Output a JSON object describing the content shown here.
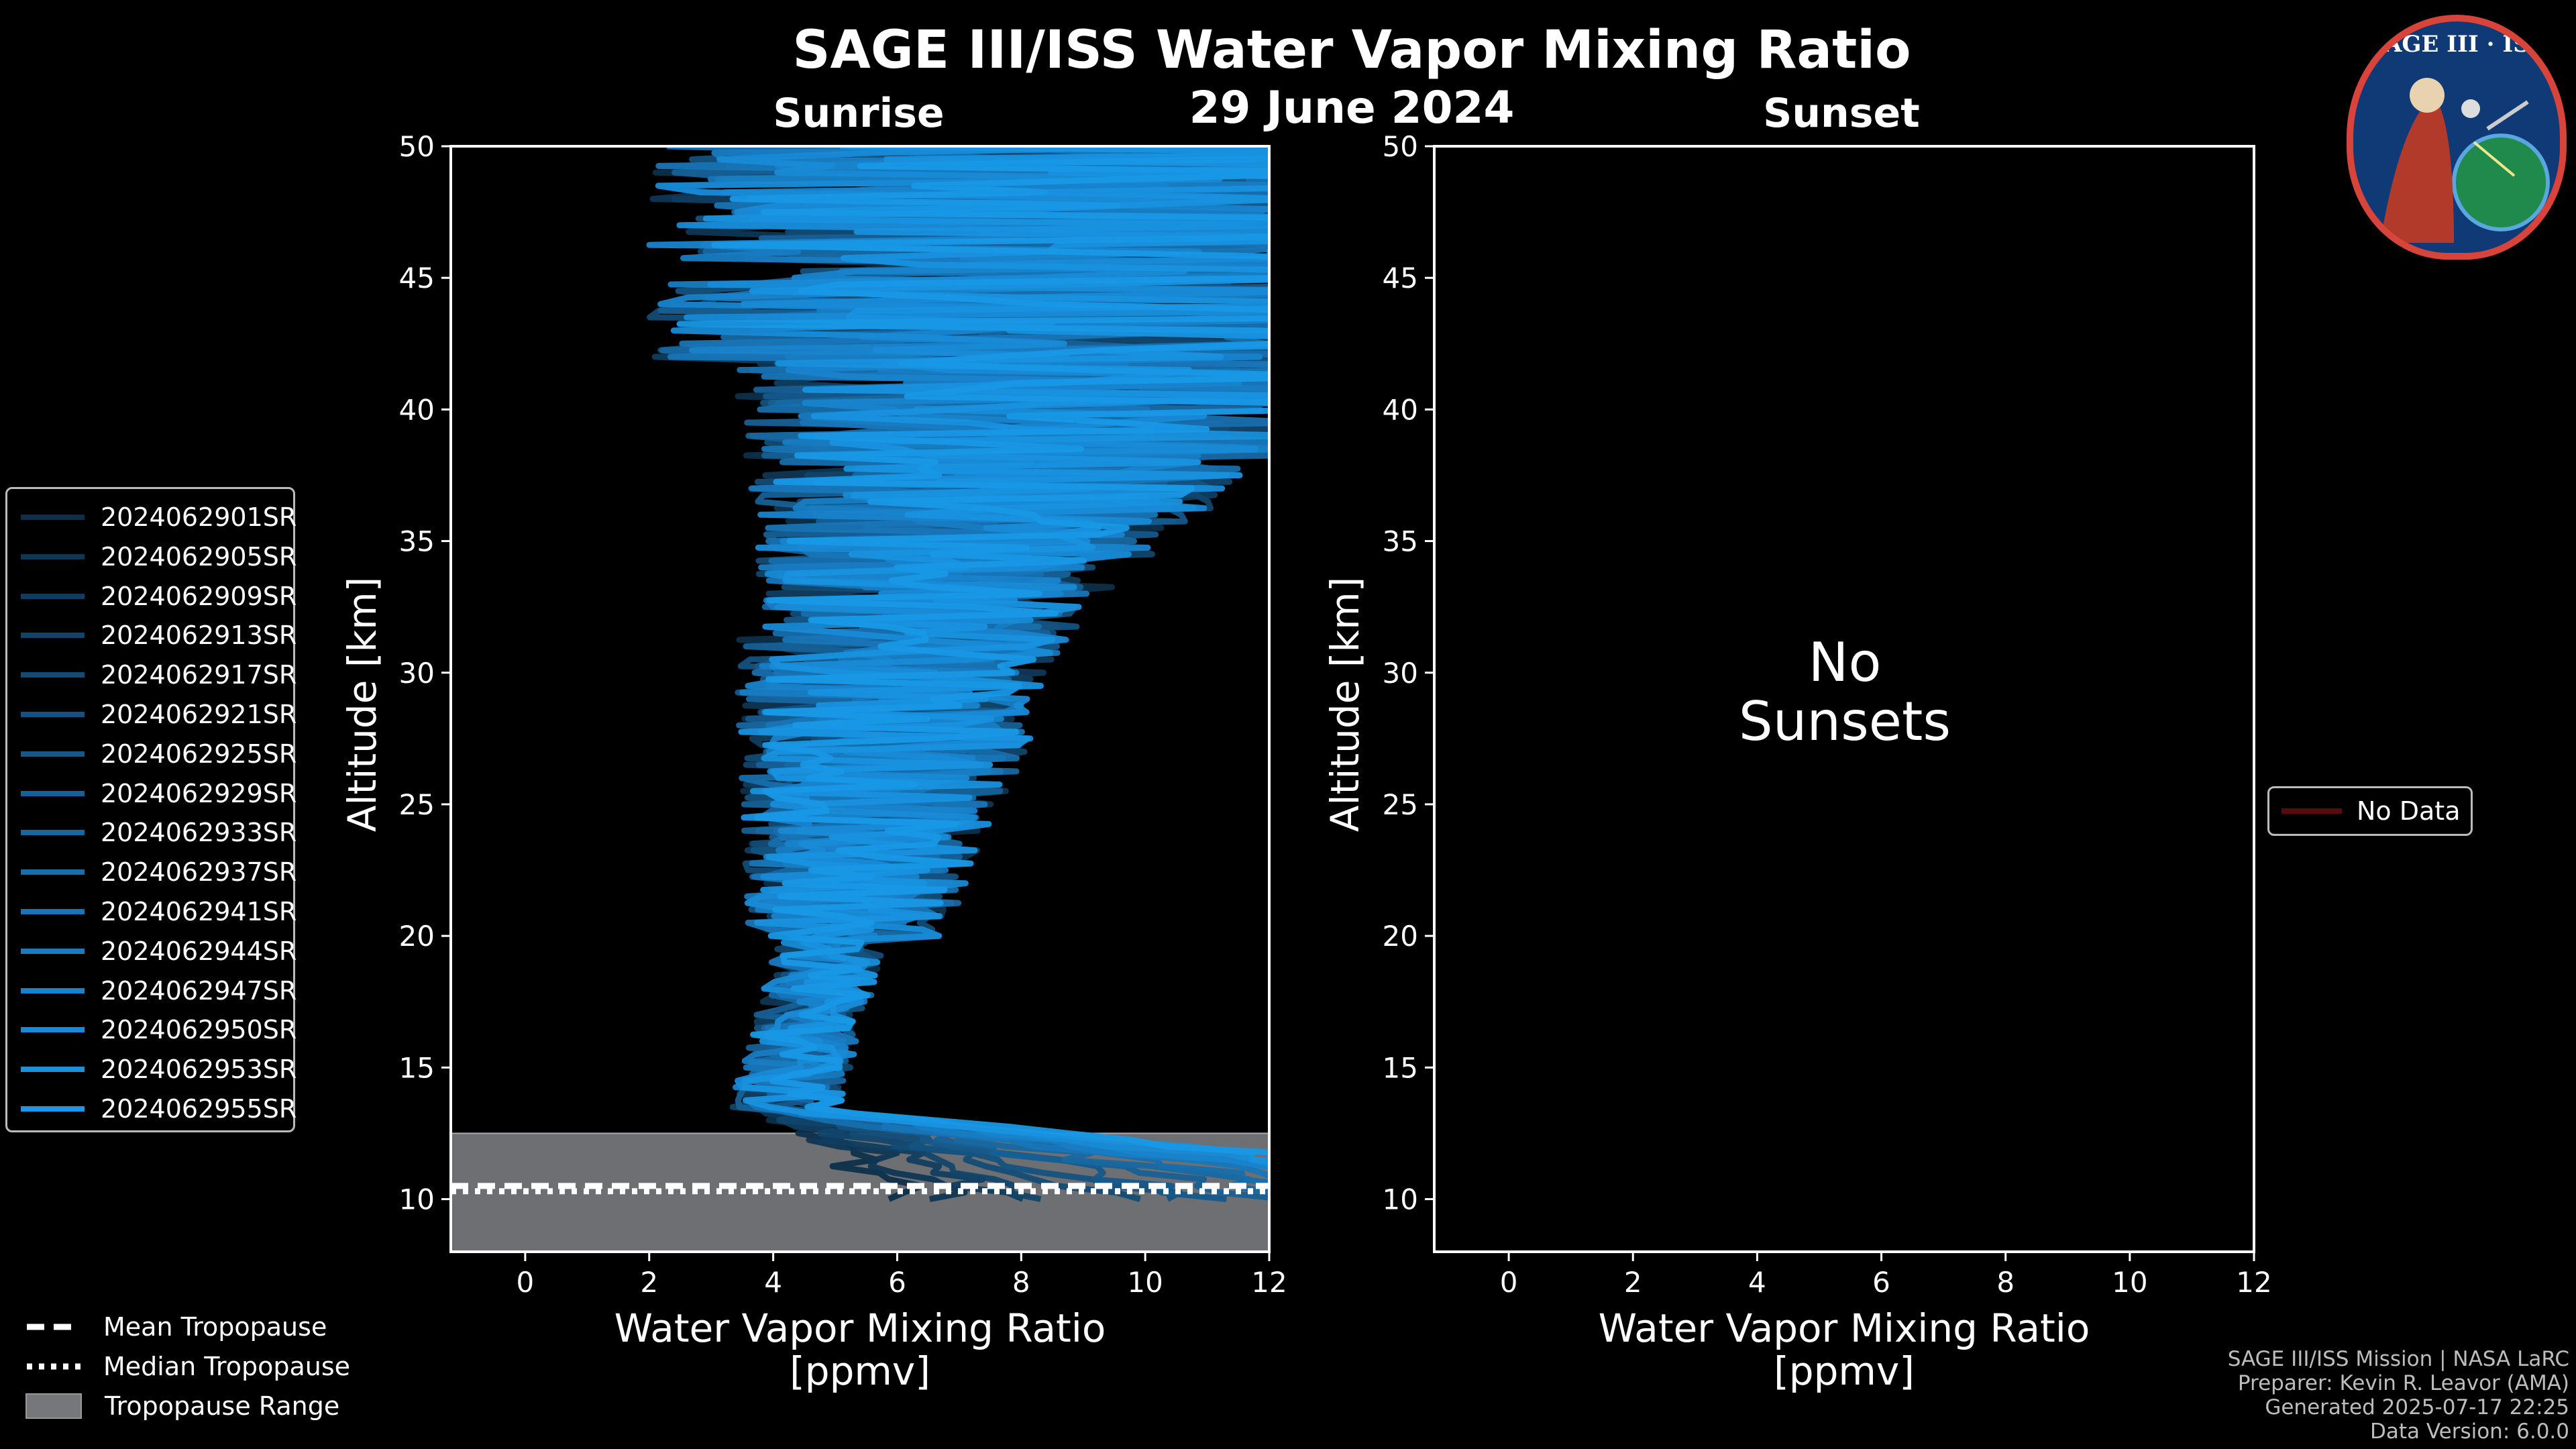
{
  "header": {
    "title": "SAGE III/ISS Water Vapor Mixing Ratio",
    "date": "29 June 2024",
    "left_panel": "Sunrise",
    "right_panel": "Sunset"
  },
  "logo": {
    "text": "SAGE III · ISS"
  },
  "no_sunsets": {
    "line1": "No",
    "line2": "Sunsets"
  },
  "no_data_legend": {
    "label": "No Data",
    "color": "#5a0a0a"
  },
  "credits": {
    "line1": "SAGE III/ISS Mission | NASA LaRC",
    "line2": "Preparer: Kevin R. Leavor (AMA)",
    "line3": "Generated 2025-07-17 22:25",
    "line4": "Data Version: 6.0.0"
  },
  "tropopause_legend": {
    "mean": "Mean Tropopause",
    "median": "Median Tropopause",
    "range": "Tropopause Range"
  },
  "chart_data": {
    "type": "line",
    "panels": [
      {
        "name": "Sunrise",
        "xlabel": "Water Vapor Mixing Ratio",
        "xlabel_units": "[ppmv]",
        "ylabel": "Altitude [km]",
        "xlim": [
          -1.2,
          12
        ],
        "ylim": [
          8,
          50
        ],
        "xticks": [
          0,
          2,
          4,
          6,
          8,
          10,
          12
        ],
        "yticks": [
          10,
          15,
          20,
          25,
          30,
          35,
          40,
          45,
          50
        ],
        "tropopause": {
          "mean": 10.5,
          "median": 10.3,
          "range": [
            8,
            12.5
          ]
        },
        "series": [
          {
            "name": "2024062901SR",
            "color": "#0d2f4a"
          },
          {
            "name": "2024062905SR",
            "color": "#0f3654"
          },
          {
            "name": "2024062909SR",
            "color": "#103d5f"
          },
          {
            "name": "2024062913SR",
            "color": "#12446a"
          },
          {
            "name": "2024062917SR",
            "color": "#134b75"
          },
          {
            "name": "2024062921SR",
            "color": "#145280"
          },
          {
            "name": "2024062925SR",
            "color": "#15598b"
          },
          {
            "name": "2024062929SR",
            "color": "#166096"
          },
          {
            "name": "2024062933SR",
            "color": "#1767a1"
          },
          {
            "name": "2024062937SR",
            "color": "#176eac"
          },
          {
            "name": "2024062941SR",
            "color": "#1875b7"
          },
          {
            "name": "2024062944SR",
            "color": "#187cc2"
          },
          {
            "name": "2024062947SR",
            "color": "#1883cc"
          },
          {
            "name": "2024062950SR",
            "color": "#188ad6"
          },
          {
            "name": "2024062953SR",
            "color": "#1891de"
          },
          {
            "name": "2024062955SR",
            "color": "#1898e6"
          }
        ]
      },
      {
        "name": "Sunset",
        "xlabel": "Water Vapor Mixing Ratio",
        "xlabel_units": "[ppmv]",
        "ylabel": "Altitude [km]",
        "xlim": [
          -1.2,
          12
        ],
        "ylim": [
          8,
          50
        ],
        "xticks": [
          0,
          2,
          4,
          6,
          8,
          10,
          12
        ],
        "yticks": [
          10,
          15,
          20,
          25,
          30,
          35,
          40,
          45,
          50
        ],
        "series": []
      }
    ]
  }
}
